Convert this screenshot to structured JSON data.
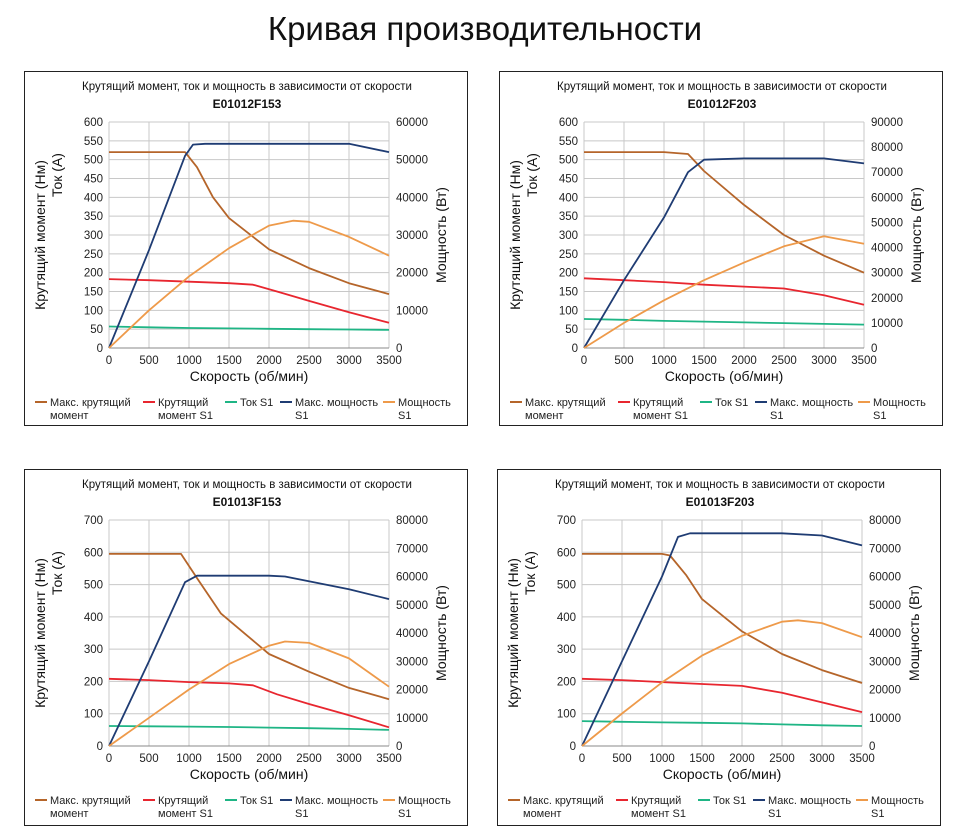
{
  "page_title": "Кривая производительности",
  "legend": {
    "max_torque": [
      "Макс. крутящий",
      "момент"
    ],
    "torque_s1": [
      "Крутящий",
      "момент S1"
    ],
    "current_s1": [
      "Ток S1"
    ],
    "max_power": [
      "Макс. мощность",
      "S1"
    ],
    "power_s1": [
      "Мощность",
      "S1"
    ]
  },
  "colors": {
    "max_torque": "#b5652a",
    "torque_s1": "#e8262f",
    "current_s1": "#1fb585",
    "max_power": "#1f3c73",
    "power_s1": "#ee9a4a",
    "grid": "#c8c8c8"
  },
  "chart_data": [
    {
      "type": "line",
      "title": "Крутящий момент, ток и мощность в зависимости от скорости",
      "model": "E01012F153",
      "xlabel": "Скорость (об/мин)",
      "ylabel_left": [
        "Крутящий момент (Нм)",
        "Ток (А)"
      ],
      "ylabel_right": "Мощность (Вт)",
      "xlim": [
        0,
        3500
      ],
      "xticks": [
        "0",
        "500",
        "1000",
        "1500",
        "2000",
        "2500",
        "3000",
        "3500"
      ],
      "ylim_left": [
        0,
        600
      ],
      "yticks_left": [
        "0",
        "50",
        "100",
        "150",
        "200",
        "250",
        "300",
        "350",
        "400",
        "450",
        "500",
        "550",
        "600"
      ],
      "ylim_right": [
        0,
        60000
      ],
      "yticks_right": [
        "0",
        "10000",
        "20000",
        "30000",
        "40000",
        "50000",
        "60000"
      ],
      "series": [
        {
          "key": "max_torque",
          "axis": "left",
          "points": [
            [
              0,
              520
            ],
            [
              500,
              520
            ],
            [
              950,
              520
            ],
            [
              1100,
              480
            ],
            [
              1300,
              400
            ],
            [
              1500,
              345
            ],
            [
              2000,
              262
            ],
            [
              2500,
              212
            ],
            [
              3000,
              172
            ],
            [
              3500,
              143
            ]
          ]
        },
        {
          "key": "torque_s1",
          "axis": "left",
          "points": [
            [
              0,
              183
            ],
            [
              500,
              180
            ],
            [
              1000,
              176
            ],
            [
              1500,
              172
            ],
            [
              1800,
              168
            ],
            [
              2100,
              150
            ],
            [
              2500,
              125
            ],
            [
              3000,
              95
            ],
            [
              3500,
              67
            ]
          ]
        },
        {
          "key": "current_s1",
          "axis": "left",
          "points": [
            [
              0,
              57
            ],
            [
              500,
              55
            ],
            [
              1000,
              53
            ],
            [
              1500,
              52
            ],
            [
              2000,
              51
            ],
            [
              2500,
              50
            ],
            [
              3000,
              49
            ],
            [
              3500,
              48
            ]
          ]
        },
        {
          "key": "max_power",
          "axis": "right",
          "points": [
            [
              0,
              0
            ],
            [
              500,
              26000
            ],
            [
              950,
              51000
            ],
            [
              1050,
              54000
            ],
            [
              1200,
              54200
            ],
            [
              2000,
              54200
            ],
            [
              3000,
              54200
            ],
            [
              3500,
              52000
            ]
          ]
        },
        {
          "key": "power_s1",
          "axis": "right",
          "points": [
            [
              0,
              0
            ],
            [
              500,
              10000
            ],
            [
              1000,
              19000
            ],
            [
              1500,
              26500
            ],
            [
              2000,
              32500
            ],
            [
              2300,
              33800
            ],
            [
              2500,
              33500
            ],
            [
              3000,
              29500
            ],
            [
              3500,
              24500
            ]
          ]
        }
      ]
    },
    {
      "type": "line",
      "title": "Крутящий момент, ток и мощность в зависимости от скорости",
      "model": "E01012F203",
      "xlabel": "Скорость (об/мин)",
      "ylabel_left": [
        "Крутящий момент (Нм)",
        "Ток (А)"
      ],
      "ylabel_right": "Мощность (Вт)",
      "xlim": [
        0,
        3500
      ],
      "xticks": [
        "0",
        "500",
        "1000",
        "1500",
        "2000",
        "2500",
        "3000",
        "3500"
      ],
      "ylim_left": [
        0,
        600
      ],
      "yticks_left": [
        "0",
        "50",
        "100",
        "150",
        "200",
        "250",
        "300",
        "350",
        "400",
        "450",
        "500",
        "550",
        "600"
      ],
      "ylim_right": [
        0,
        90000
      ],
      "yticks_right": [
        "0",
        "10000",
        "20000",
        "30000",
        "40000",
        "50000",
        "60000",
        "70000",
        "80000",
        "90000"
      ],
      "series": [
        {
          "key": "max_torque",
          "axis": "left",
          "points": [
            [
              0,
              520
            ],
            [
              500,
              520
            ],
            [
              1000,
              520
            ],
            [
              1300,
              515
            ],
            [
              1500,
              470
            ],
            [
              2000,
              380
            ],
            [
              2500,
              300
            ],
            [
              3000,
              245
            ],
            [
              3500,
              200
            ]
          ]
        },
        {
          "key": "torque_s1",
          "axis": "left",
          "points": [
            [
              0,
              185
            ],
            [
              500,
              180
            ],
            [
              1000,
              175
            ],
            [
              1500,
              168
            ],
            [
              2000,
              163
            ],
            [
              2500,
              158
            ],
            [
              3000,
              140
            ],
            [
              3500,
              115
            ]
          ]
        },
        {
          "key": "current_s1",
          "axis": "left",
          "points": [
            [
              0,
              77
            ],
            [
              500,
              75
            ],
            [
              1000,
              72
            ],
            [
              1500,
              70
            ],
            [
              2000,
              68
            ],
            [
              2500,
              66
            ],
            [
              3000,
              64
            ],
            [
              3500,
              62
            ]
          ]
        },
        {
          "key": "max_power",
          "axis": "right",
          "points": [
            [
              0,
              0
            ],
            [
              500,
              27000
            ],
            [
              1000,
              52000
            ],
            [
              1300,
              70000
            ],
            [
              1500,
              75000
            ],
            [
              2000,
              75500
            ],
            [
              2500,
              75500
            ],
            [
              3000,
              75500
            ],
            [
              3500,
              73500
            ]
          ]
        },
        {
          "key": "power_s1",
          "axis": "right",
          "points": [
            [
              0,
              0
            ],
            [
              500,
              10000
            ],
            [
              1000,
              19000
            ],
            [
              1500,
              27000
            ],
            [
              2000,
              34000
            ],
            [
              2500,
              40500
            ],
            [
              3000,
              44500
            ],
            [
              3500,
              41500
            ]
          ]
        }
      ]
    },
    {
      "type": "line",
      "title": "Крутящий момент, ток и мощность в зависимости от скорости",
      "model": "E01013F153",
      "xlabel": "Скорость (об/мин)",
      "ylabel_left": [
        "Крутящий момент (Нм)",
        "Ток (А)"
      ],
      "ylabel_right": "Мощность (Вт)",
      "xlim": [
        0,
        3500
      ],
      "xticks": [
        "0",
        "500",
        "1000",
        "1500",
        "2000",
        "2500",
        "3000",
        "3500"
      ],
      "ylim_left": [
        0,
        700
      ],
      "yticks_left": [
        "0",
        "100",
        "200",
        "300",
        "400",
        "500",
        "600",
        "700"
      ],
      "ylim_right": [
        0,
        80000
      ],
      "yticks_right": [
        "0",
        "10000",
        "20000",
        "30000",
        "40000",
        "50000",
        "60000",
        "70000",
        "80000"
      ],
      "series": [
        {
          "key": "max_torque",
          "axis": "left",
          "points": [
            [
              0,
              595
            ],
            [
              500,
              595
            ],
            [
              900,
              595
            ],
            [
              1100,
              520
            ],
            [
              1400,
              410
            ],
            [
              2000,
              285
            ],
            [
              2500,
              230
            ],
            [
              3000,
              180
            ],
            [
              3500,
              145
            ]
          ]
        },
        {
          "key": "torque_s1",
          "axis": "left",
          "points": [
            [
              0,
              208
            ],
            [
              500,
              204
            ],
            [
              1000,
              198
            ],
            [
              1500,
              194
            ],
            [
              1800,
              188
            ],
            [
              2100,
              160
            ],
            [
              2500,
              130
            ],
            [
              3000,
              95
            ],
            [
              3500,
              58
            ]
          ]
        },
        {
          "key": "current_s1",
          "axis": "left",
          "points": [
            [
              0,
              62
            ],
            [
              500,
              61
            ],
            [
              1000,
              60
            ],
            [
              1500,
              59
            ],
            [
              2000,
              57
            ],
            [
              2500,
              55
            ],
            [
              3000,
              53
            ],
            [
              3500,
              50
            ]
          ]
        },
        {
          "key": "max_power",
          "axis": "right",
          "points": [
            [
              0,
              0
            ],
            [
              500,
              30000
            ],
            [
              950,
              58000
            ],
            [
              1100,
              60300
            ],
            [
              1500,
              60300
            ],
            [
              2000,
              60300
            ],
            [
              2200,
              60000
            ],
            [
              3000,
              55500
            ],
            [
              3500,
              52000
            ]
          ]
        },
        {
          "key": "power_s1",
          "axis": "right",
          "points": [
            [
              0,
              0
            ],
            [
              500,
              10000
            ],
            [
              1000,
              20000
            ],
            [
              1500,
              29000
            ],
            [
              2000,
              35500
            ],
            [
              2200,
              37000
            ],
            [
              2500,
              36500
            ],
            [
              3000,
              31000
            ],
            [
              3500,
              21000
            ]
          ]
        }
      ]
    },
    {
      "type": "line",
      "title": "Крутящий момент, ток и мощность в зависимости от скорости",
      "model": "E01013F203",
      "xlabel": "Скорость (об/мин)",
      "ylabel_left": [
        "Крутящий момент (Нм)",
        "Ток (А)"
      ],
      "ylabel_right": "Мощность (Вт)",
      "xlim": [
        0,
        3500
      ],
      "xticks": [
        "0",
        "500",
        "1000",
        "1500",
        "2000",
        "2500",
        "3000",
        "3500"
      ],
      "ylim_left": [
        0,
        700
      ],
      "yticks_left": [
        "0",
        "100",
        "200",
        "300",
        "400",
        "500",
        "600",
        "700"
      ],
      "ylim_right": [
        0,
        80000
      ],
      "yticks_right": [
        "0",
        "10000",
        "20000",
        "30000",
        "40000",
        "50000",
        "60000",
        "70000",
        "80000"
      ],
      "series": [
        {
          "key": "max_torque",
          "axis": "left",
          "points": [
            [
              0,
              595
            ],
            [
              500,
              595
            ],
            [
              1000,
              595
            ],
            [
              1100,
              590
            ],
            [
              1300,
              530
            ],
            [
              1500,
              455
            ],
            [
              2000,
              355
            ],
            [
              2500,
              285
            ],
            [
              3000,
              235
            ],
            [
              3500,
              195
            ]
          ]
        },
        {
          "key": "torque_s1",
          "axis": "left",
          "points": [
            [
              0,
              208
            ],
            [
              500,
              204
            ],
            [
              1000,
              198
            ],
            [
              1500,
              192
            ],
            [
              2000,
              186
            ],
            [
              2500,
              165
            ],
            [
              3000,
              135
            ],
            [
              3500,
              105
            ]
          ]
        },
        {
          "key": "current_s1",
          "axis": "left",
          "points": [
            [
              0,
              77
            ],
            [
              500,
              75
            ],
            [
              1000,
              73
            ],
            [
              1500,
              72
            ],
            [
              2000,
              70
            ],
            [
              2500,
              67
            ],
            [
              3000,
              64
            ],
            [
              3500,
              62
            ]
          ]
        },
        {
          "key": "max_power",
          "axis": "right",
          "points": [
            [
              0,
              0
            ],
            [
              500,
              30000
            ],
            [
              1000,
              60000
            ],
            [
              1200,
              74000
            ],
            [
              1350,
              75300
            ],
            [
              2000,
              75300
            ],
            [
              2500,
              75300
            ],
            [
              3000,
              74500
            ],
            [
              3500,
              71000
            ]
          ]
        },
        {
          "key": "power_s1",
          "axis": "right",
          "points": [
            [
              0,
              0
            ],
            [
              500,
              11500
            ],
            [
              1000,
              22500
            ],
            [
              1500,
              32000
            ],
            [
              2000,
              39000
            ],
            [
              2500,
              44000
            ],
            [
              2700,
              44500
            ],
            [
              3000,
              43500
            ],
            [
              3500,
              38500
            ]
          ]
        }
      ]
    }
  ]
}
